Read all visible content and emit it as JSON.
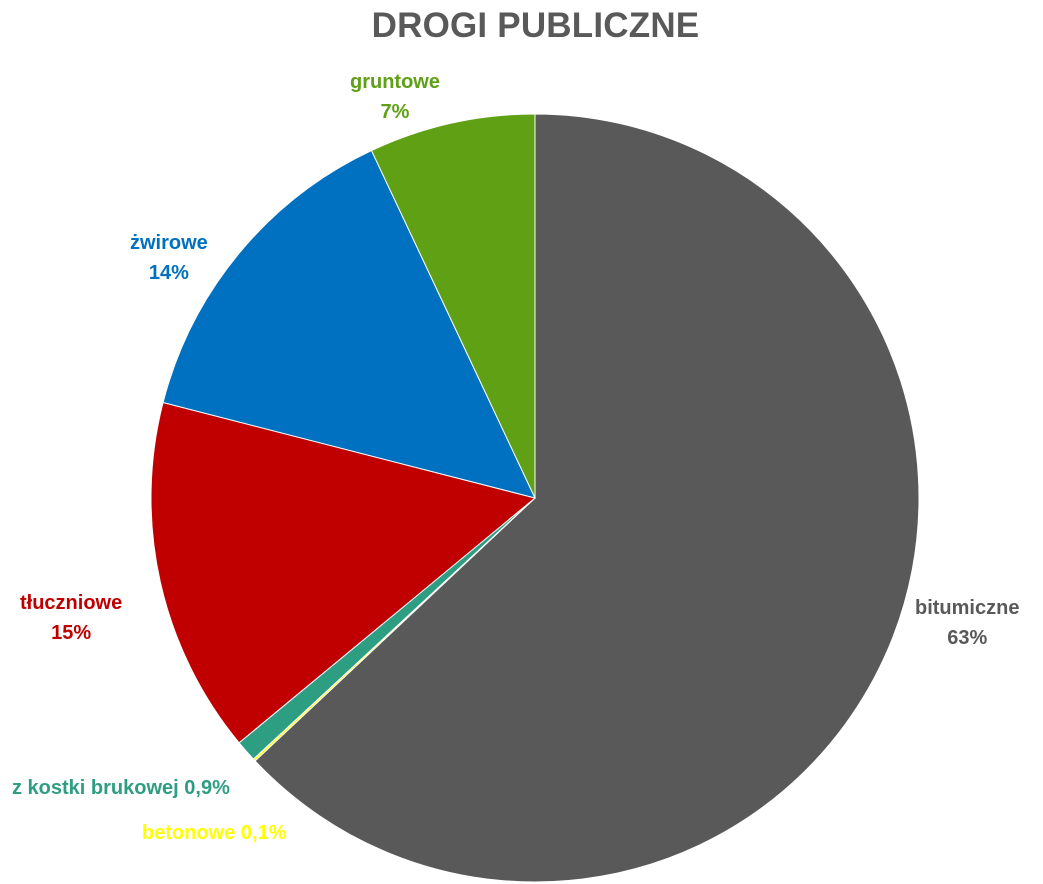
{
  "chart_data": {
    "type": "pie",
    "title": "DROGI PUBLICZNE",
    "slices": [
      {
        "name": "bitumiczne",
        "value": 63,
        "label_value": "63%",
        "color": "#595959"
      },
      {
        "name": "betonowe",
        "value": 0.1,
        "label_value": "0,1%",
        "color": "#FFFF00"
      },
      {
        "name": "z kostki brukowej",
        "value": 0.9,
        "label_value": "0,9%",
        "color": "#2E9E83"
      },
      {
        "name": "tłuczniowe",
        "value": 15,
        "label_value": "15%",
        "color": "#C00000"
      },
      {
        "name": "żwirowe",
        "value": 14,
        "label_value": "14%",
        "color": "#0070C0"
      },
      {
        "name": "gruntowe",
        "value": 7,
        "label_value": "7%",
        "color": "#5FA015"
      }
    ]
  }
}
